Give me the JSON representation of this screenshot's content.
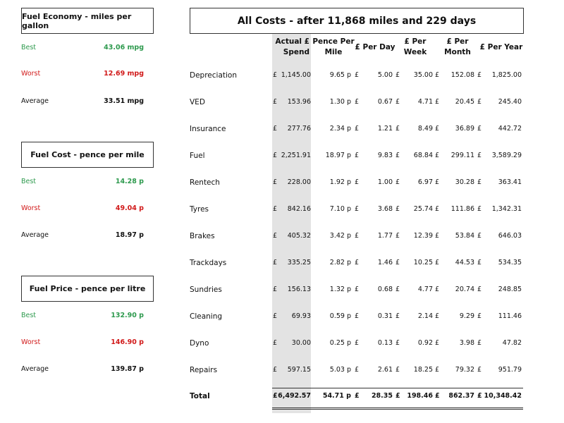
{
  "left": {
    "fuel_economy": {
      "title": "Fuel Economy - miles per gallon",
      "best_label": "Best",
      "best_value": "43.06 mpg",
      "worst_label": "Worst",
      "worst_value": "12.69 mpg",
      "average_label": "Average",
      "average_value": "33.51 mpg"
    },
    "fuel_cost": {
      "title": "Fuel Cost - pence per mile",
      "best_label": "Best",
      "best_value": "14.28 p",
      "worst_label": "Worst",
      "worst_value": "49.04 p",
      "average_label": "Average",
      "average_value": "18.97 p"
    },
    "fuel_price": {
      "title": "Fuel Price - pence per litre",
      "best_label": "Best",
      "best_value": "132.90 p",
      "worst_label": "Worst",
      "worst_value": "146.90 p",
      "average_label": "Average",
      "average_value": "139.87 p"
    }
  },
  "colors": {
    "best": "#2e9a4e",
    "worst": "#d11a1a",
    "shade": "#e3e3e3"
  },
  "costs": {
    "title": "All Costs - after 11,868 miles and 229 days",
    "headers": [
      "Actual £\nSpend",
      "Pence Per\nMile",
      "£ Per Day",
      "£ Per\nWeek",
      "£ Per\nMonth",
      "£ Per Year"
    ],
    "currency": "£",
    "rows": [
      {
        "label": "Depreciation",
        "spend": "1,145.00",
        "ppm": "9.65 p",
        "day": "5.00",
        "week": "35.00",
        "month": "152.08",
        "year": "1,825.00"
      },
      {
        "label": "VED",
        "spend": "153.96",
        "ppm": "1.30 p",
        "day": "0.67",
        "week": "4.71",
        "month": "20.45",
        "year": "245.40"
      },
      {
        "label": "Insurance",
        "spend": "277.76",
        "ppm": "2.34 p",
        "day": "1.21",
        "week": "8.49",
        "month": "36.89",
        "year": "442.72"
      },
      {
        "label": "Fuel",
        "spend": "2,251.91",
        "ppm": "18.97 p",
        "day": "9.83",
        "week": "68.84",
        "month": "299.11",
        "year": "3,589.29"
      },
      {
        "label": "Rentech",
        "spend": "228.00",
        "ppm": "1.92 p",
        "day": "1.00",
        "week": "6.97",
        "month": "30.28",
        "year": "363.41"
      },
      {
        "label": "Tyres",
        "spend": "842.16",
        "ppm": "7.10 p",
        "day": "3.68",
        "week": "25.74",
        "month": "111.86",
        "year": "1,342.31"
      },
      {
        "label": "Brakes",
        "spend": "405.32",
        "ppm": "3.42 p",
        "day": "1.77",
        "week": "12.39",
        "month": "53.84",
        "year": "646.03"
      },
      {
        "label": "Trackdays",
        "spend": "335.25",
        "ppm": "2.82 p",
        "day": "1.46",
        "week": "10.25",
        "month": "44.53",
        "year": "534.35"
      },
      {
        "label": "Sundries",
        "spend": "156.13",
        "ppm": "1.32 p",
        "day": "0.68",
        "week": "4.77",
        "month": "20.74",
        "year": "248.85"
      },
      {
        "label": "Cleaning",
        "spend": "69.93",
        "ppm": "0.59 p",
        "day": "0.31",
        "week": "2.14",
        "month": "9.29",
        "year": "111.46"
      },
      {
        "label": "Dyno",
        "spend": "30.00",
        "ppm": "0.25 p",
        "day": "0.13",
        "week": "0.92",
        "month": "3.98",
        "year": "47.82"
      },
      {
        "label": "Repairs",
        "spend": "597.15",
        "ppm": "5.03 p",
        "day": "2.61",
        "week": "18.25",
        "month": "79.32",
        "year": "951.79"
      }
    ],
    "total": {
      "label": "Total",
      "spend": "6,492.57",
      "ppm": "54.71 p",
      "day": "28.35",
      "week": "198.46",
      "month": "862.37",
      "year": "10,348.42"
    }
  }
}
